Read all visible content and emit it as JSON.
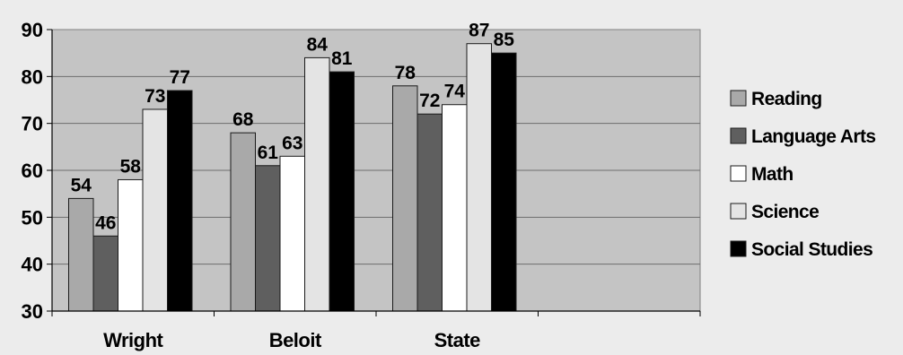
{
  "chart_data": {
    "type": "bar",
    "categories": [
      "Wright",
      "Beloit",
      "State"
    ],
    "series": [
      {
        "name": "Reading",
        "values": [
          54,
          68,
          78
        ],
        "color": "#a9a9a9"
      },
      {
        "name": "Language Arts",
        "values": [
          46,
          61,
          72
        ],
        "color": "#5f5f5f"
      },
      {
        "name": "Math",
        "values": [
          58,
          63,
          74
        ],
        "color": "#ffffff"
      },
      {
        "name": "Science",
        "values": [
          73,
          84,
          87
        ],
        "color": "#e4e4e4"
      },
      {
        "name": "Social Studies",
        "values": [
          77,
          81,
          85
        ],
        "color": "#000000"
      }
    ],
    "data_labels": [
      [
        "54",
        "68",
        "78"
      ],
      [
        "46",
        "61",
        "72"
      ],
      [
        "58",
        "63",
        "74"
      ],
      [
        "73",
        "84",
        "87"
      ],
      [
        "77",
        "81",
        "85"
      ]
    ],
    "ylim": [
      30,
      90
    ],
    "yticks": [
      "30",
      "40",
      "50",
      "60",
      "70",
      "80",
      "90"
    ],
    "ytick_values": [
      30,
      40,
      50,
      60,
      70,
      80,
      90
    ],
    "grid": true,
    "legend": "right",
    "plot_background": "#c4c4c4",
    "empty_category_slots": 1
  }
}
